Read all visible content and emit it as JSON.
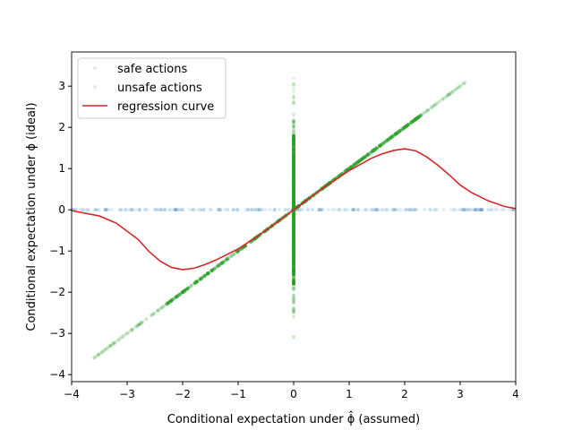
{
  "chart_data": {
    "type": "scatter",
    "xlabel": "Conditional expectation under ϕ̂ (assumed)",
    "ylabel": "Conditional expectation under ϕ (ideal)",
    "xlim": [
      -4,
      4
    ],
    "ylim": [
      -4.17,
      3.83
    ],
    "xticks": [
      "−4",
      "−3",
      "−2",
      "−1",
      "0",
      "1",
      "2",
      "3",
      "4"
    ],
    "xtick_values": [
      -4,
      -3,
      -2,
      -1,
      0,
      1,
      2,
      3,
      4
    ],
    "yticks": [
      "−4",
      "−3",
      "−2",
      "−1",
      "0",
      "1",
      "2",
      "3"
    ],
    "ytick_values": [
      -4,
      -3,
      -2,
      -1,
      0,
      1,
      2,
      3
    ],
    "legend_position": "top-left",
    "series": [
      {
        "name": "safe actions",
        "kind": "scatter",
        "color": "#2ca02c",
        "segments": [
          {
            "desc": "diagonal y=x",
            "x_range": [
              -3.6,
              3.1
            ],
            "slope": 1,
            "x0": null
          },
          {
            "desc": "vertical x=0",
            "y_range": [
              -3.8,
              3.5
            ]
          }
        ]
      },
      {
        "name": "unsafe actions",
        "kind": "scatter",
        "color": "#1f77b4",
        "segments": [
          {
            "desc": "horizontal y=0",
            "x_range": [
              -4,
              4
            ]
          }
        ]
      },
      {
        "name": "regression curve",
        "kind": "line",
        "color": "#d62728",
        "x": [
          -4,
          -3.5,
          -3.2,
          -3,
          -2.8,
          -2.6,
          -2.4,
          -2.2,
          -2,
          -1.8,
          -1.6,
          -1.4,
          -1,
          -0.5,
          0,
          0.5,
          1,
          1.4,
          1.6,
          1.8,
          2,
          2.2,
          2.4,
          2.6,
          2.8,
          3,
          3.2,
          3.5,
          3.8,
          4
        ],
        "y": [
          -0.02,
          -0.15,
          -0.32,
          -0.52,
          -0.72,
          -1.02,
          -1.25,
          -1.4,
          -1.45,
          -1.42,
          -1.33,
          -1.22,
          -0.95,
          -0.5,
          0,
          0.5,
          0.95,
          1.25,
          1.36,
          1.44,
          1.48,
          1.43,
          1.28,
          1.08,
          0.85,
          0.6,
          0.42,
          0.22,
          0.08,
          0.03
        ]
      }
    ]
  }
}
